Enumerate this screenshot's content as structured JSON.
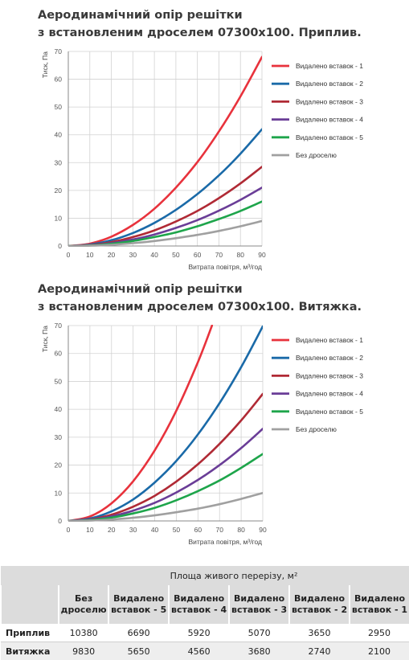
{
  "charts_titles": [
    [
      "Аеродинамічний опір решітки",
      "з встановленим дроселем 07300х100. Приплив."
    ],
    [
      "Аеродинамічний опір решітки",
      "з встановленим дроселем 07300х100. Витяжка."
    ]
  ],
  "chart_data": [
    {
      "type": "line",
      "title": "Аеродинамічний опір решітки з встановленим дроселем 07300х100. Приплив.",
      "xlabel": "Витрата повітря, м³/год",
      "ylabel": "Тиск, Па",
      "xlim": [
        0,
        90
      ],
      "ylim": [
        0,
        70
      ],
      "x_ticks": [
        0,
        10,
        20,
        30,
        40,
        50,
        60,
        70,
        80,
        90
      ],
      "y_ticks": [
        0,
        10,
        20,
        30,
        40,
        50,
        60,
        70
      ],
      "grid": true,
      "legend_position": "right",
      "x": [
        0,
        10,
        20,
        30,
        40,
        50,
        60,
        70,
        80,
        90
      ],
      "series": [
        {
          "name": "Видалено вставок - 1",
          "color": "#e8323c",
          "values": [
            0,
            0.84,
            3.36,
            7.56,
            13.4,
            21.0,
            30.2,
            41.2,
            53.8,
            68.0
          ]
        },
        {
          "name": "Видалено вставок - 2",
          "color": "#1a6aa8",
          "values": [
            0,
            0.52,
            2.07,
            4.67,
            8.3,
            13.0,
            18.7,
            25.4,
            33.2,
            42.0
          ]
        },
        {
          "name": "Видалено вставок - 3",
          "color": "#b02a35",
          "values": [
            0,
            0.35,
            1.4,
            3.2,
            5.6,
            8.8,
            12.6,
            17.2,
            22.5,
            28.5
          ]
        },
        {
          "name": "Видалено вставок - 4",
          "color": "#6a3d97",
          "values": [
            0,
            0.26,
            1.04,
            2.33,
            4.15,
            6.5,
            9.3,
            12.7,
            16.6,
            21.0
          ]
        },
        {
          "name": "Видалено вставок - 5",
          "color": "#1ea54b",
          "values": [
            0,
            0.2,
            0.79,
            1.78,
            3.2,
            4.9,
            7.1,
            9.7,
            12.6,
            16.0
          ]
        },
        {
          "name": "Без дроселю",
          "color": "#a0a0a0",
          "values": [
            0,
            0.11,
            0.44,
            1.0,
            1.78,
            2.8,
            4.0,
            5.4,
            7.1,
            9.0
          ]
        }
      ]
    },
    {
      "type": "line",
      "title": "Аеродинамічний опір решітки з встановленим дроселем 07300х100. Витяжка.",
      "xlabel": "Витрата повітря, м³/год",
      "ylabel": "Тиск, Па",
      "xlim": [
        0,
        90
      ],
      "ylim": [
        0,
        70
      ],
      "x_ticks": [
        0,
        10,
        20,
        30,
        40,
        50,
        60,
        70,
        80,
        90
      ],
      "y_ticks": [
        0,
        10,
        20,
        30,
        40,
        50,
        60,
        70
      ],
      "grid": true,
      "legend_position": "right",
      "x": [
        0,
        10,
        20,
        30,
        40,
        50,
        60,
        70,
        80,
        90
      ],
      "series": [
        {
          "name": "Видалено вставок - 1",
          "color": "#e8323c",
          "x": [
            0,
            10,
            20,
            30,
            40,
            50,
            60,
            66.5
          ],
          "values": [
            0,
            1.58,
            6.3,
            14.2,
            25.3,
            39.5,
            56.9,
            70.0
          ]
        },
        {
          "name": "Видалено вставок - 2",
          "color": "#1a6aa8",
          "values": [
            0,
            0.86,
            3.44,
            7.7,
            13.8,
            21.5,
            31.0,
            42.2,
            55.1,
            69.7
          ]
        },
        {
          "name": "Видалено вставок - 3",
          "color": "#b02a35",
          "values": [
            0,
            0.56,
            2.25,
            5.1,
            9.0,
            14.1,
            20.3,
            27.6,
            36.0,
            45.5
          ]
        },
        {
          "name": "Видалено вставок - 4",
          "color": "#6a3d97",
          "values": [
            0,
            0.41,
            1.63,
            3.7,
            6.5,
            10.2,
            14.7,
            20.0,
            26.1,
            33.0
          ]
        },
        {
          "name": "Видалено вставок - 5",
          "color": "#1ea54b",
          "values": [
            0,
            0.3,
            1.19,
            2.67,
            4.7,
            7.4,
            10.7,
            14.5,
            19.0,
            24.0
          ]
        },
        {
          "name": "Без дроселю",
          "color": "#a0a0a0",
          "values": [
            0,
            0.12,
            0.5,
            1.11,
            2.0,
            3.1,
            4.4,
            6.0,
            7.9,
            10.0
          ]
        }
      ]
    }
  ],
  "table": {
    "header_main": "Площа живого перерізу, м²",
    "columns": [
      [
        "Без",
        "дроселю"
      ],
      [
        "Видалено",
        "вставок - 5"
      ],
      [
        "Видалено",
        "вставок - 4"
      ],
      [
        "Видалено",
        "вставок - 3"
      ],
      [
        "Видалено",
        "вставок - 2"
      ],
      [
        "Видалено",
        "вставок - 1"
      ]
    ],
    "rows": [
      {
        "label": "Приплив",
        "values": [
          "10380",
          "6690",
          "5920",
          "5070",
          "3650",
          "2950"
        ]
      },
      {
        "label": "Витяжка",
        "values": [
          "9830",
          "5650",
          "4560",
          "3680",
          "2740",
          "2100"
        ]
      }
    ]
  }
}
